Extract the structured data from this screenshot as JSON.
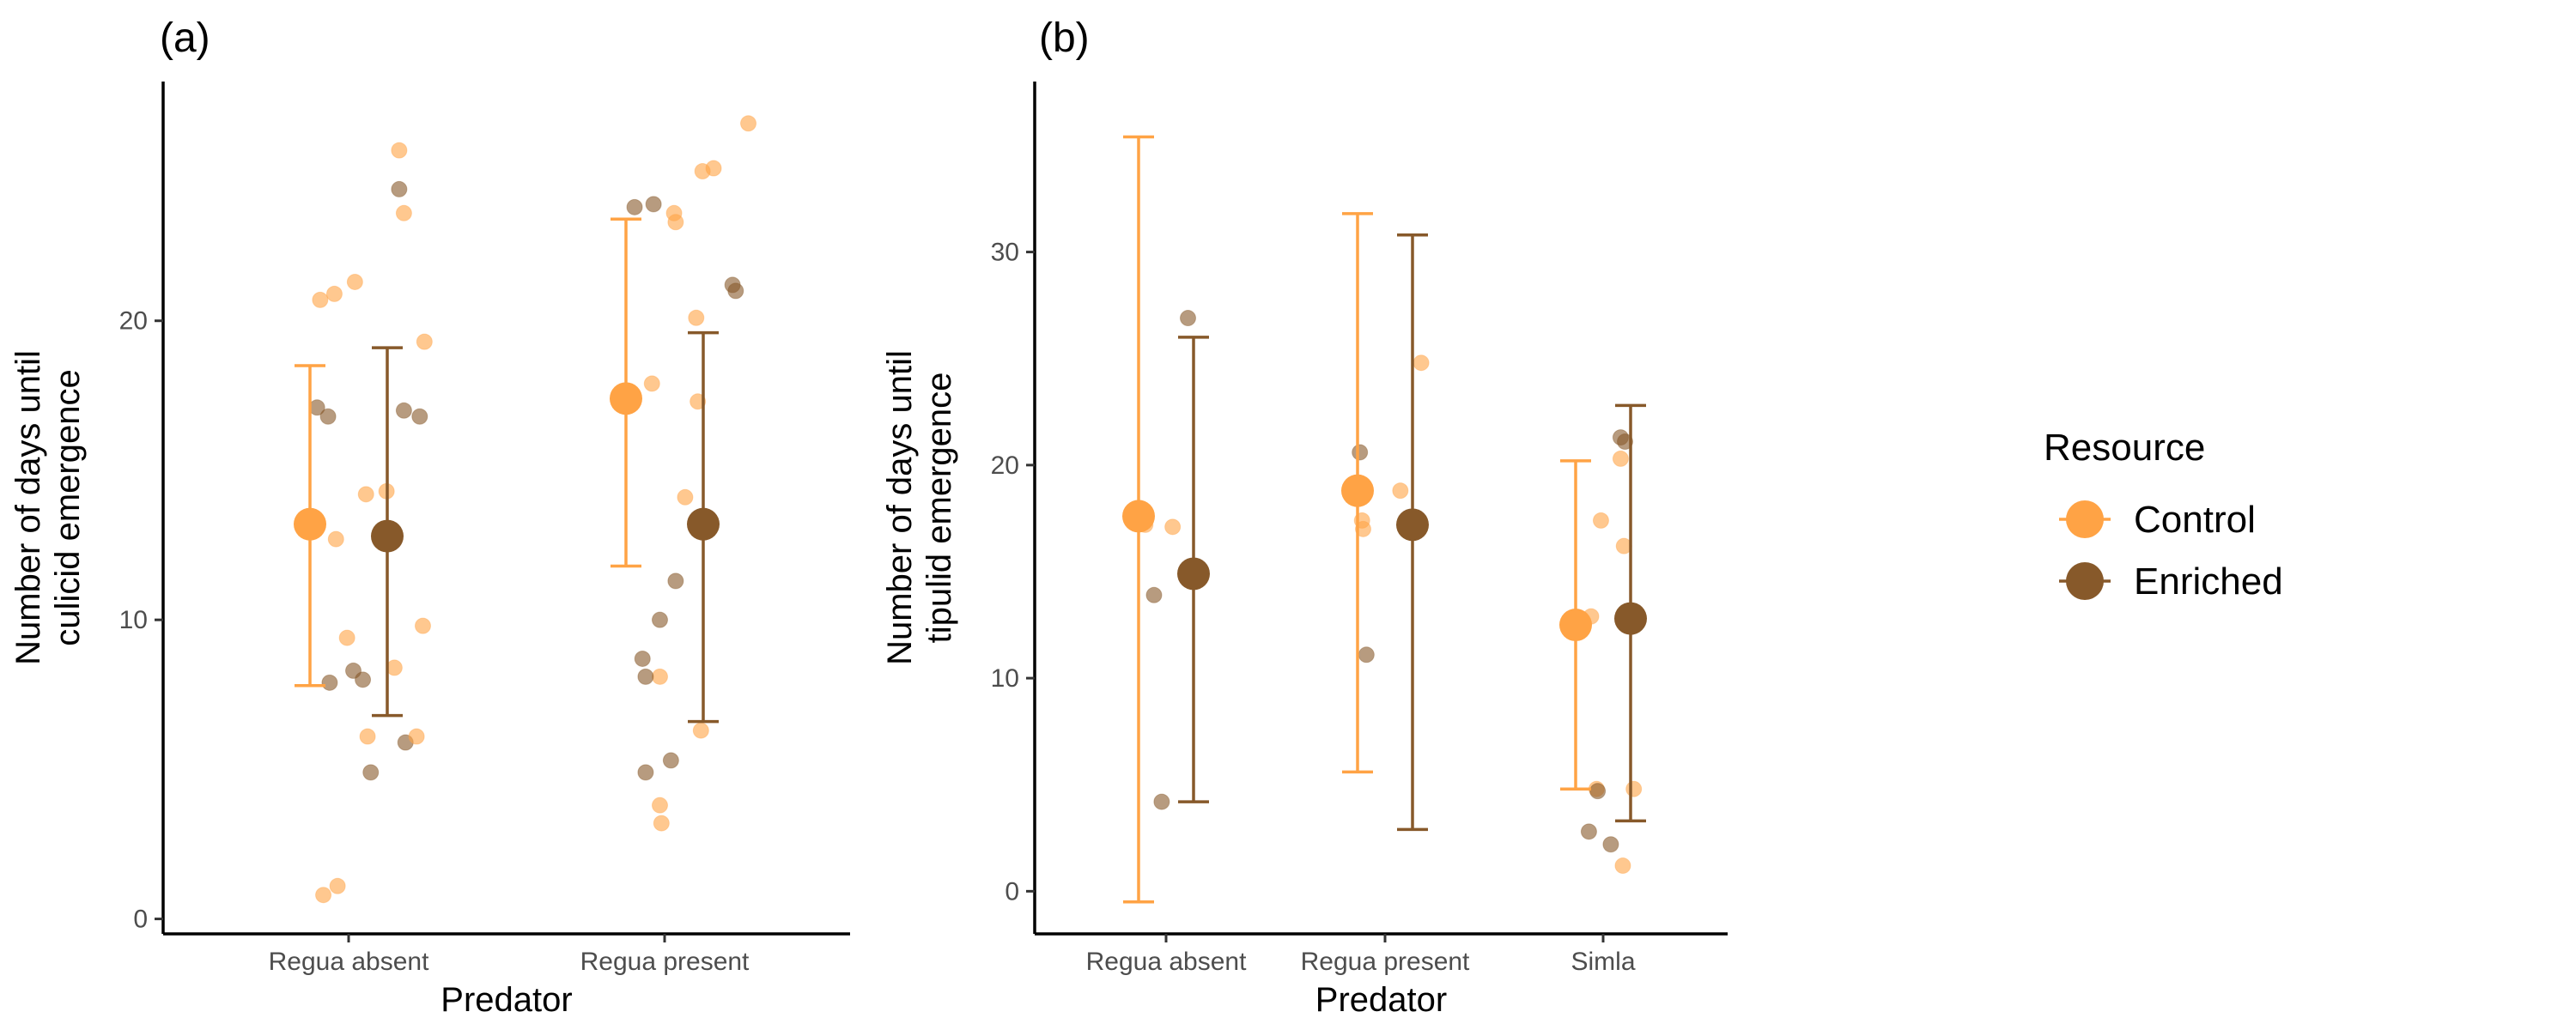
{
  "colors": {
    "Control": "#FFA345",
    "Enriched": "#87592A"
  },
  "legend": {
    "title": "Resource",
    "items": [
      {
        "name": "Control",
        "color": "#FFA345"
      },
      {
        "name": "Enriched",
        "color": "#87592A"
      }
    ]
  },
  "chart_data": [
    {
      "type": "scatter",
      "panel_label": "(a)",
      "xlabel": "Predator",
      "ylabel_lines": [
        "Number of days until",
        "culicid emergence"
      ],
      "categories": [
        "Regua absent",
        "Regua present"
      ],
      "ylim": [
        -0.5,
        28
      ],
      "yticks": [
        0,
        10,
        20
      ],
      "groups": [
        {
          "category": "Regua absent",
          "series": "Control",
          "mean": 13.2,
          "lower": 7.8,
          "upper": 18.5,
          "points": [
            [
              -0.18,
              20.7
            ],
            [
              -0.09,
              20.9
            ],
            [
              0.04,
              21.3
            ],
            [
              -0.08,
              12.7
            ],
            [
              -0.01,
              9.4
            ],
            [
              0.11,
              14.2
            ],
            [
              0.12,
              6.1
            ],
            [
              -0.16,
              0.8
            ],
            [
              -0.07,
              1.1
            ]
          ]
        },
        {
          "category": "Regua absent",
          "series": "Enriched",
          "mean": 12.8,
          "lower": 6.8,
          "upper": 19.1,
          "points": [
            [
              -0.2,
              17.1
            ],
            [
              -0.13,
              16.8
            ],
            [
              -0.12,
              7.9
            ],
            [
              0.03,
              8.3
            ],
            [
              0.09,
              8.0
            ],
            [
              0.14,
              4.9
            ],
            [
              0.32,
              24.4
            ],
            [
              0.35,
              17.0
            ],
            [
              0.36,
              5.9
            ],
            [
              0.45,
              16.8
            ]
          ]
        },
        {
          "category": "Regua absent",
          "series": "Control",
          "mean": null,
          "lower": null,
          "upper": null,
          "points": [
            [
              0.32,
              25.7
            ],
            [
              0.35,
              23.6
            ],
            [
              0.48,
              19.3
            ],
            [
              0.24,
              14.3
            ],
            [
              0.47,
              9.8
            ],
            [
              0.29,
              8.4
            ],
            [
              0.43,
              6.1
            ]
          ]
        },
        {
          "category": "Regua present",
          "series": "Control",
          "mean": 17.4,
          "lower": 11.8,
          "upper": 23.4,
          "points": [
            [
              -0.08,
              17.9
            ],
            [
              -0.03,
              8.1
            ],
            [
              -0.03,
              3.8
            ],
            [
              -0.02,
              3.2
            ],
            [
              0.06,
              23.6
            ],
            [
              0.07,
              23.3
            ],
            [
              0.13,
              14.1
            ],
            [
              0.2,
              20.1
            ],
            [
              0.21,
              17.3
            ],
            [
              0.23,
              6.3
            ],
            [
              0.24,
              25.0
            ],
            [
              0.31,
              25.1
            ],
            [
              0.53,
              26.6
            ]
          ]
        },
        {
          "category": "Regua present",
          "series": "Enriched",
          "mean": 13.2,
          "lower": 6.6,
          "upper": 19.6,
          "points": [
            [
              -0.19,
              23.8
            ],
            [
              -0.14,
              8.7
            ],
            [
              -0.12,
              8.1
            ],
            [
              -0.12,
              4.9
            ],
            [
              -0.07,
              23.9
            ],
            [
              -0.03,
              10.0
            ],
            [
              0.04,
              5.3
            ],
            [
              0.07,
              11.3
            ],
            [
              0.43,
              21.2
            ],
            [
              0.45,
              21.0
            ]
          ]
        }
      ]
    },
    {
      "type": "scatter",
      "panel_label": "(b)",
      "xlabel": "Predator",
      "ylabel_lines": [
        "Number of days until",
        "tipulid emergence"
      ],
      "categories": [
        "Regua absent",
        "Regua present",
        "Simla"
      ],
      "ylim": [
        -2,
        38
      ],
      "yticks": [
        0,
        10,
        20,
        30
      ],
      "groups": [
        {
          "category": "Regua absent",
          "series": "Control",
          "mean": 17.6,
          "lower": -0.5,
          "upper": 35.4,
          "points": [
            [
              -0.19,
              17.2
            ],
            [
              0.06,
              17.1
            ]
          ]
        },
        {
          "category": "Regua absent",
          "series": "Enriched",
          "mean": 14.9,
          "lower": 4.2,
          "upper": 26.0,
          "points": [
            [
              -0.11,
              13.9
            ],
            [
              -0.04,
              4.2
            ],
            [
              0.2,
              26.9
            ]
          ]
        },
        {
          "category": "Regua present",
          "series": "Control",
          "mean": 18.8,
          "lower": 5.6,
          "upper": 31.8,
          "points": [
            [
              -0.21,
              17.4
            ],
            [
              -0.2,
              17.0
            ],
            [
              0.14,
              18.8
            ],
            [
              0.33,
              24.8
            ]
          ]
        },
        {
          "category": "Regua present",
          "series": "Enriched",
          "mean": 17.2,
          "lower": 2.9,
          "upper": 30.8,
          "points": [
            [
              -0.23,
              20.6
            ],
            [
              -0.17,
              11.1
            ]
          ]
        },
        {
          "category": "Simla",
          "series": "Control",
          "mean": 12.5,
          "lower": 4.8,
          "upper": 20.2,
          "points": [
            [
              -0.11,
              12.9
            ],
            [
              -0.02,
              17.4
            ],
            [
              -0.06,
              4.8
            ],
            [
              0.16,
              20.3
            ],
            [
              0.19,
              16.2
            ],
            [
              0.18,
              1.2
            ],
            [
              0.28,
              4.8
            ]
          ]
        },
        {
          "category": "Simla",
          "series": "Enriched",
          "mean": 12.8,
          "lower": 3.3,
          "upper": 22.8,
          "points": [
            [
              -0.13,
              2.8
            ],
            [
              -0.05,
              4.7
            ],
            [
              0.07,
              2.2
            ],
            [
              0.16,
              21.3
            ],
            [
              0.2,
              21.1
            ]
          ]
        }
      ]
    }
  ]
}
